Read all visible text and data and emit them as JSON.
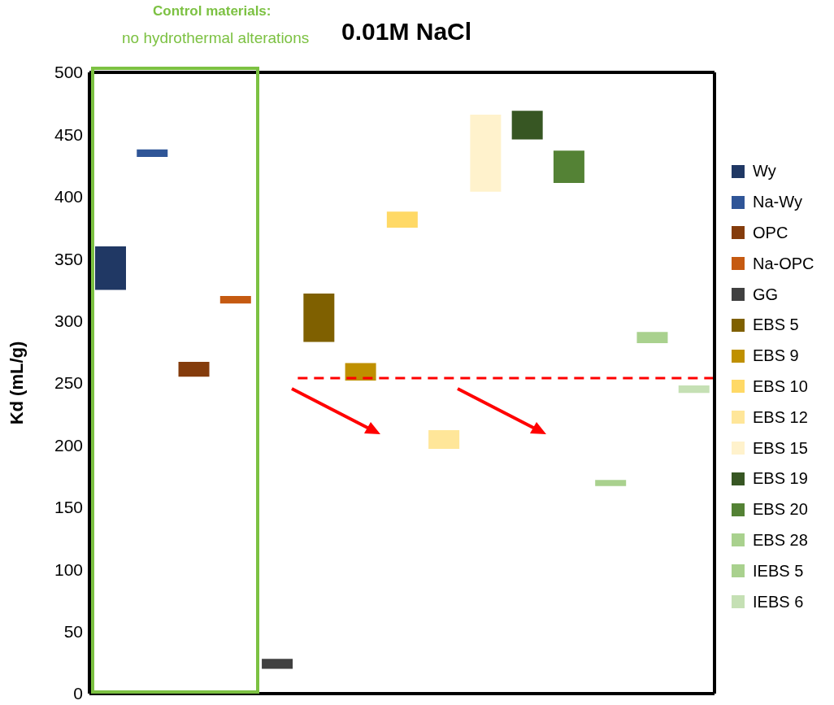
{
  "chart_data": {
    "type": "bar",
    "title": "0.01M NaCl",
    "ylabel": "Kd (mL/g)",
    "annotations": [
      "Control materials:",
      "no hydrothermal  alterations"
    ],
    "categories": [
      null,
      null,
      null,
      null,
      null,
      null,
      null,
      null,
      null,
      null,
      null,
      null,
      null,
      null,
      null
    ],
    "series": [
      {
        "name": "Wy",
        "color": "#203864",
        "values": [
          35,
          null,
          null,
          null,
          null,
          null,
          null,
          null,
          null,
          null,
          null,
          null,
          null,
          null,
          null
        ],
        "base": [
          325,
          null,
          null,
          null,
          null,
          null,
          null,
          null,
          null,
          null,
          null,
          null,
          null,
          null,
          null
        ]
      },
      {
        "name": "Na-Wy",
        "color": "#2f5597",
        "values": [
          null,
          6,
          null,
          null,
          null,
          null,
          null,
          null,
          null,
          null,
          null,
          null,
          null,
          null,
          null
        ],
        "base": [
          null,
          432,
          null,
          null,
          null,
          null,
          null,
          null,
          null,
          null,
          null,
          null,
          null,
          null,
          null
        ]
      },
      {
        "name": "OPC",
        "color": "#843c0c",
        "values": [
          null,
          null,
          12,
          null,
          null,
          null,
          null,
          null,
          null,
          null,
          null,
          null,
          null,
          null,
          null
        ],
        "base": [
          null,
          null,
          255,
          null,
          null,
          null,
          null,
          null,
          null,
          null,
          null,
          null,
          null,
          null,
          null
        ]
      },
      {
        "name": "Na-OPC",
        "color": "#c55a11",
        "values": [
          null,
          null,
          null,
          6,
          null,
          null,
          null,
          null,
          null,
          null,
          null,
          null,
          null,
          null,
          null
        ],
        "base": [
          null,
          null,
          null,
          314,
          null,
          null,
          null,
          null,
          null,
          null,
          null,
          null,
          null,
          null,
          null
        ]
      },
      {
        "name": "GG",
        "color": "#404040",
        "values": [
          null,
          null,
          null,
          null,
          8,
          null,
          null,
          null,
          null,
          null,
          null,
          null,
          null,
          null,
          null
        ],
        "base": [
          null,
          null,
          null,
          null,
          20,
          null,
          null,
          null,
          null,
          null,
          null,
          null,
          null,
          null,
          null
        ]
      },
      {
        "name": "EBS 5",
        "color": "#7f6000",
        "values": [
          null,
          null,
          null,
          null,
          null,
          39,
          null,
          null,
          null,
          null,
          null,
          null,
          null,
          null,
          null
        ],
        "base": [
          null,
          null,
          null,
          null,
          null,
          283,
          null,
          null,
          null,
          null,
          null,
          null,
          null,
          null,
          null
        ]
      },
      {
        "name": "EBS 9",
        "color": "#bf9000",
        "values": [
          null,
          null,
          null,
          null,
          null,
          null,
          14,
          null,
          null,
          null,
          null,
          null,
          null,
          null,
          null
        ],
        "base": [
          null,
          null,
          null,
          null,
          null,
          null,
          252,
          null,
          null,
          null,
          null,
          null,
          null,
          null,
          null
        ]
      },
      {
        "name": "EBS 10",
        "color": "#ffd966",
        "values": [
          null,
          null,
          null,
          null,
          null,
          null,
          null,
          13,
          null,
          null,
          null,
          null,
          null,
          null,
          null
        ],
        "base": [
          null,
          null,
          null,
          null,
          null,
          null,
          null,
          375,
          null,
          null,
          null,
          null,
          null,
          null,
          null
        ]
      },
      {
        "name": "EBS 12",
        "color": "#ffe699",
        "values": [
          null,
          null,
          null,
          null,
          null,
          null,
          null,
          null,
          15,
          null,
          null,
          null,
          null,
          null,
          null
        ],
        "base": [
          null,
          null,
          null,
          null,
          null,
          null,
          null,
          null,
          197,
          null,
          null,
          null,
          null,
          null,
          null
        ]
      },
      {
        "name": "EBS 15",
        "color": "#fff2cc",
        "values": [
          null,
          null,
          null,
          null,
          null,
          null,
          null,
          null,
          null,
          62,
          null,
          null,
          null,
          null,
          null
        ],
        "base": [
          null,
          null,
          null,
          null,
          null,
          null,
          null,
          null,
          null,
          404,
          null,
          null,
          null,
          null,
          null
        ]
      },
      {
        "name": "EBS 19",
        "color": "#375623",
        "values": [
          null,
          null,
          null,
          null,
          null,
          null,
          null,
          null,
          null,
          null,
          23,
          null,
          null,
          null,
          null
        ],
        "base": [
          null,
          null,
          null,
          null,
          null,
          null,
          null,
          null,
          null,
          null,
          446,
          null,
          null,
          null,
          null
        ]
      },
      {
        "name": "EBS 20",
        "color": "#548235",
        "values": [
          null,
          null,
          null,
          null,
          null,
          null,
          null,
          null,
          null,
          null,
          null,
          26,
          null,
          null,
          null
        ],
        "base": [
          null,
          null,
          null,
          null,
          null,
          null,
          null,
          null,
          null,
          null,
          null,
          411,
          null,
          null,
          null
        ]
      },
      {
        "name": "EBS 28",
        "color": "#a9d18e",
        "values": [
          null,
          null,
          null,
          null,
          null,
          null,
          null,
          null,
          null,
          null,
          null,
          null,
          5,
          null,
          null
        ],
        "base": [
          null,
          null,
          null,
          null,
          null,
          null,
          null,
          null,
          null,
          null,
          null,
          null,
          167,
          null,
          null
        ]
      },
      {
        "name": "IEBS 5",
        "color": "#a9d18e",
        "values": [
          null,
          null,
          null,
          null,
          null,
          null,
          null,
          null,
          null,
          null,
          null,
          null,
          null,
          9,
          null
        ],
        "base": [
          null,
          null,
          null,
          null,
          null,
          null,
          null,
          null,
          null,
          null,
          null,
          null,
          null,
          282,
          null
        ]
      },
      {
        "name": "IEBS 6",
        "color": "#c5e0b4",
        "values": [
          null,
          null,
          null,
          null,
          null,
          null,
          null,
          null,
          null,
          null,
          null,
          null,
          null,
          null,
          6
        ],
        "base": [
          null,
          null,
          null,
          null,
          null,
          null,
          null,
          null,
          null,
          null,
          null,
          null,
          null,
          null,
          242
        ]
      }
    ],
    "ylim": [
      0,
      500
    ],
    "yticks": [
      0,
      50,
      100,
      150,
      200,
      250,
      300,
      350,
      400,
      450,
      500
    ],
    "ref_lines": [
      {
        "axis": "y",
        "value": 254,
        "color": "#ff0000",
        "line_style": "dashed"
      }
    ],
    "grid": false,
    "legend": "right"
  }
}
